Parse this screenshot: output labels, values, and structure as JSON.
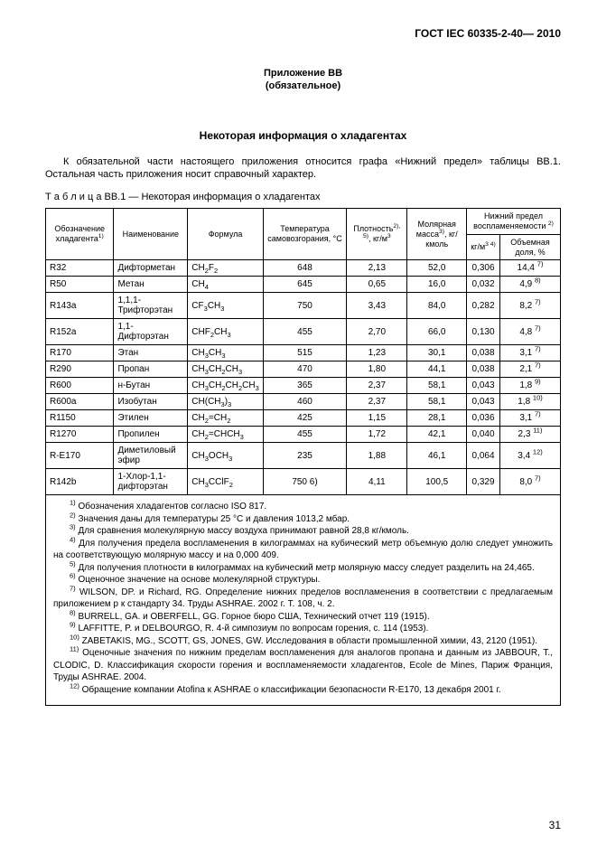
{
  "doc_id": "ГОСТ IEC 60335-2-40— 2010",
  "appendix_line1": "Приложение ВВ",
  "appendix_line2": "(обязательное)",
  "section_title": "Некоторая информация о хладагентах",
  "intro": "К обязательной части настоящего приложения относится графа «Нижний предел» таблицы ВВ.1. Остальная часть приложения носит справочный характер.",
  "table_caption_prefix": "Т а б л и ц а",
  "table_caption": "  ВВ.1 — Некоторая информация о хладагентах",
  "head": {
    "c1": "Обозначение хладагента",
    "c2": "Наименование",
    "c3": "Формула",
    "c4": "Температура самовозгорания, °С",
    "c5a": "Плотность",
    "c5b": ", кг/м",
    "c6a": "Молярная масса",
    "c6b": ", кг/кмоль",
    "c7": "Нижний предел воспламеняемости",
    "c7a": "кг/м",
    "c7b": "Объемная доля, %"
  },
  "rows": [
    {
      "r": "R32",
      "name": "Дифторметан",
      "formula": "CH<sub>2</sub>F<sub>2</sub>",
      "t": "648",
      "d": "2,13",
      "m": "52,0",
      "kg": "0,306",
      "v": "14,4 <sup>7)</sup>"
    },
    {
      "r": "R50",
      "name": "Метан",
      "formula": "CH<sub>4</sub>",
      "t": "645",
      "d": "0,65",
      "m": "16,0",
      "kg": "0,032",
      "v": "4,9 <sup>8)</sup>"
    },
    {
      "r": "R143a",
      "name": "1,1,1-Трифторэтан",
      "formula": "CF<sub>3</sub>CH<sub>3</sub>",
      "t": "750",
      "d": "3,43",
      "m": "84,0",
      "kg": "0,282",
      "v": "8,2 <sup>7)</sup>"
    },
    {
      "r": "R152a",
      "name": "1,1-Дифторэтан",
      "formula": "CHF<sub>2</sub>CH<sub>3</sub>",
      "t": "455",
      "d": "2,70",
      "m": "66,0",
      "kg": "0,130",
      "v": "4,8 <sup>7)</sup>"
    },
    {
      "r": "R170",
      "name": "Этан",
      "formula": "CH<sub>3</sub>CH<sub>3</sub>",
      "t": "515",
      "d": "1,23",
      "m": "30,1",
      "kg": "0,038",
      "v": "3,1 <sup>7)</sup>"
    },
    {
      "r": "R290",
      "name": "Пропан",
      "formula": "CH<sub>3</sub>CH<sub>2</sub>CH<sub>3</sub>",
      "t": "470",
      "d": "1,80",
      "m": "44,1",
      "kg": "0,038",
      "v": "2,1 <sup>7)</sup>"
    },
    {
      "r": "R600",
      "name": "н-Бутан",
      "formula": "CH<sub>3</sub>CH<sub>2</sub>CH<sub>2</sub>CH<sub>3</sub>",
      "t": "365",
      "d": "2,37",
      "m": "58,1",
      "kg": "0,043",
      "v": "1,8 <sup>9)</sup>"
    },
    {
      "r": "R600a",
      "name": "Изобутан",
      "formula": "CH(CH<sub>3</sub>)<sub>3</sub>",
      "t": "460",
      "d": "2,37",
      "m": "58,1",
      "kg": "0,043",
      "v": "1,8 <sup>10)</sup>"
    },
    {
      "r": "R1150",
      "name": "Этилен",
      "formula": "CH<sub>2</sub>=CH<sub>2</sub>",
      "t": "425",
      "d": "1,15",
      "m": "28,1",
      "kg": "0,036",
      "v": "3,1 <sup>7)</sup>"
    },
    {
      "r": "R1270",
      "name": "Пропилен",
      "formula": "CH<sub>2</sub>=CHCH<sub>3</sub>",
      "t": "455",
      "d": "1,72",
      "m": "42,1",
      "kg": "0,040",
      "v": "2,3 <sup>11)</sup>"
    },
    {
      "r": "R-E170",
      "name": "Диметиловый эфир",
      "formula": "CH<sub>3</sub>OCH<sub>3</sub>",
      "t": "235",
      "d": "1,88",
      "m": "46,1",
      "kg": "0,064",
      "v": "3,4 <sup>12)</sup>"
    },
    {
      "r": "R142b",
      "name": "1-Хлор-1,1-дифторэтан",
      "formula": "CH<sub>3</sub>CClF<sub>2</sub>",
      "t": "750 6)",
      "d": "4,11",
      "m": "100,5",
      "kg": "0,329",
      "v": "8,0 <sup>7)</sup>"
    }
  ],
  "footnotes": [
    "<sup>1)</sup> Обозначения хладагентов согласно ISO 817.",
    "<sup>2)</sup> Значения даны для температуры 25 °С и давления 1013,2 мбар.",
    "<sup>3)</sup> Для сравнения молекулярную массу воздуха принимают равной 28,8 кг/кмоль.",
    "<sup>4)</sup> Для получения предела воспламенения в килограммах на кубический метр объемную долю следует умножить на соответствующую молярную массу и на 0,000 409.",
    "<sup>5)</sup> Для получения плотности в килограммах на кубический метр молярную массу следует разделить на 24,465.",
    "<sup>6)</sup> Оценочное значение на основе молекулярной структуры.",
    "<sup>7)</sup> WILSON, DP. и Richard, RG. Определение нижних пределов воспламенения в соответствии с предлагаемым приложением p к стандарту 34. Труды ASHRAE. 2002 г. Т. 108, ч. 2.",
    "<sup>8)</sup> BURRELL, GA. и OBERFELL, GG. Горное бюро США, Технический отчет 119 (1915).",
    "<sup>9)</sup> LAFFITTE, P. и DELBOURGO, R. 4-й симпозиум по вопросам горения, с. 114 (1953).",
    "<sup>10)</sup> ZABETAKIS, MG., SCOTT, GS, JONES, GW. Исследования в области промышленной химии, 43, 2120 (1951).",
    "<sup>11)</sup> Оценочные значения по нижним пределам воспламенения для аналогов пропана и данным из JABBOUR, T., CLODIC, D. Классификация скорости горения и воспламеняемости хладагентов, Ecole de Mines, Париж Франция, Труды ASHRAE. 2004.",
    "<sup>12)</sup> Обращение компании Atofina к ASHRAE о классификации безопасности R-E170, 13 декабря 2001 г."
  ],
  "page_number": "31"
}
